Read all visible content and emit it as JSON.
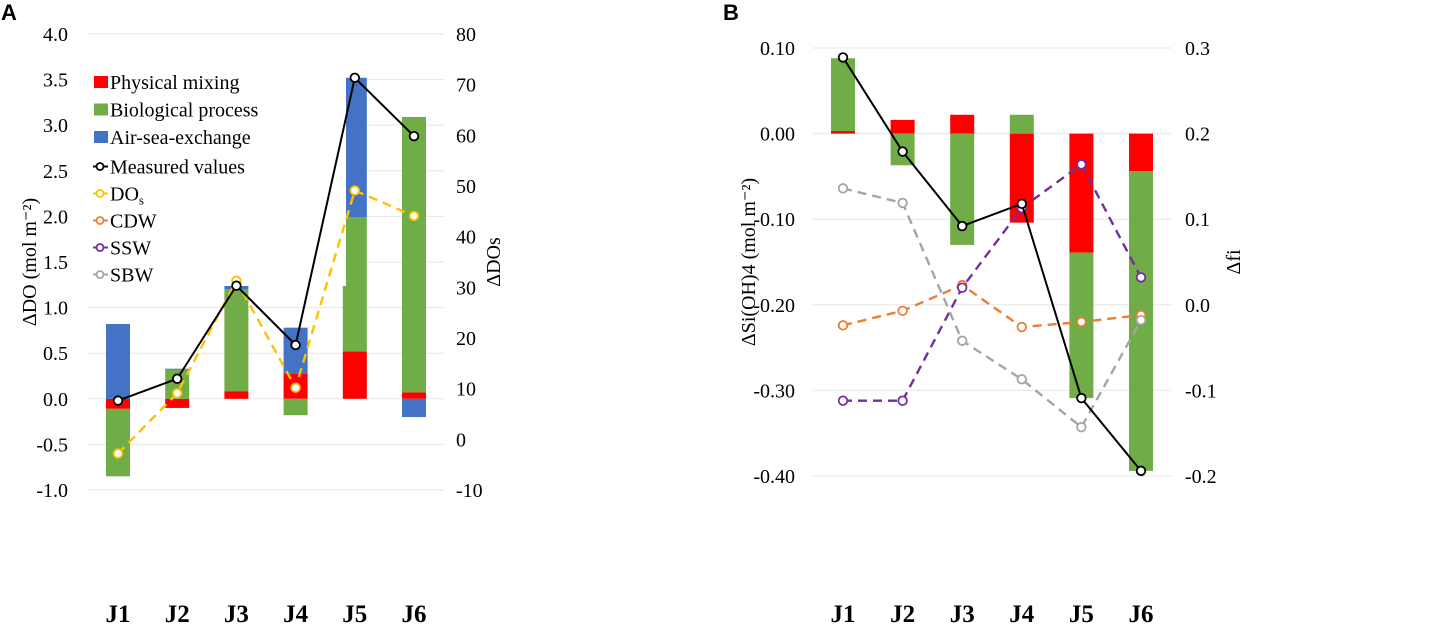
{
  "chart_data": [
    {
      "panel": "A",
      "type": "bar",
      "stacked": true,
      "categories": [
        "J1",
        "J2",
        "J3",
        "J4",
        "J5",
        "J6"
      ],
      "ylabel": "ΔDO (mol m⁻²)",
      "ylabel_right": "ΔDOs",
      "ylim": [
        -1.0,
        4.0
      ],
      "ylim_right": [
        -10,
        80
      ],
      "yticks": [
        "4.0",
        "3.5",
        "3.0",
        "2.5",
        "2.0",
        "1.5",
        "1.0",
        "0.5",
        "0.0",
        "-0.5",
        "-1.0"
      ],
      "yticks_right": [
        "80",
        "70",
        "60",
        "50",
        "40",
        "30",
        "20",
        "10",
        "0",
        "-10"
      ],
      "legend_position": "top-left",
      "bar_series": [
        {
          "name": "Physical mixing",
          "color": "#ff0000",
          "values": [
            -0.11,
            -0.1,
            0.08,
            0.28,
            0.52,
            0.07
          ]
        },
        {
          "name": "Biological process",
          "color": "#70ad47",
          "values": [
            -0.74,
            0.32,
            1.12,
            -0.18,
            1.47,
            3.02
          ]
        },
        {
          "name": "Air-sea-exchange",
          "color": "#4472c4",
          "values": [
            0.82,
            0.01,
            0.04,
            0.5,
            1.53,
            -0.2
          ]
        }
      ],
      "line_series": [
        {
          "name": "Measured values",
          "color": "#000000",
          "dashed": false,
          "axis": "left",
          "values": [
            -0.02,
            0.22,
            1.24,
            0.59,
            3.52,
            2.88
          ]
        },
        {
          "name": "DOs",
          "color": "#ffc000",
          "dashed": true,
          "axis": "right",
          "values": [
            -2.8,
            9.1,
            31.3,
            10.2,
            49.1,
            44.1
          ]
        }
      ],
      "legend_extra": [
        {
          "name": "CDW",
          "color": "#ed7d31"
        },
        {
          "name": "SSW",
          "color": "#7030a0"
        },
        {
          "name": "SBW",
          "color": "#a5a5a5"
        }
      ]
    },
    {
      "panel": "B",
      "type": "bar",
      "stacked": true,
      "categories": [
        "J1",
        "J2",
        "J3",
        "J4",
        "J5",
        "J6"
      ],
      "ylabel": "ΔSi(OH)4 (mol m⁻²)",
      "ylabel_right": "Δfi",
      "ylim": [
        -0.4,
        0.1
      ],
      "ylim_right": [
        -0.2,
        0.3
      ],
      "yticks": [
        "0.10",
        "0.00",
        "-0.10",
        "-0.20",
        "-0.30",
        "-0.40"
      ],
      "yticks_right": [
        "0.3",
        "0.2",
        "0.1",
        "0.0",
        "-0.1",
        "-0.2"
      ],
      "bar_series": [
        {
          "name": "Physical mixing",
          "color": "#ff0000",
          "values": [
            0.003,
            0.016,
            0.022,
            -0.104,
            -0.139,
            -0.044
          ]
        },
        {
          "name": "Biological process",
          "color": "#70ad47",
          "values": [
            0.085,
            -0.037,
            -0.13,
            0.022,
            -0.17,
            -0.35
          ]
        }
      ],
      "line_series": [
        {
          "name": "Measured values",
          "color": "#000000",
          "dashed": false,
          "axis": "left",
          "values": [
            0.089,
            -0.021,
            -0.108,
            -0.082,
            -0.309,
            -0.394
          ]
        },
        {
          "name": "CDW",
          "color": "#ed7d31",
          "dashed": true,
          "axis": "right",
          "values": [
            -0.024,
            -0.007,
            0.023,
            -0.026,
            -0.02,
            -0.012
          ]
        },
        {
          "name": "SSW",
          "color": "#7030a0",
          "dashed": true,
          "axis": "right",
          "values": [
            -0.112,
            -0.112,
            0.02,
            0.113,
            0.164,
            0.032
          ]
        },
        {
          "name": "SBW",
          "color": "#a5a5a5",
          "dashed": true,
          "axis": "right",
          "values": [
            0.136,
            0.119,
            -0.042,
            -0.087,
            -0.143,
            -0.018
          ]
        }
      ]
    }
  ]
}
